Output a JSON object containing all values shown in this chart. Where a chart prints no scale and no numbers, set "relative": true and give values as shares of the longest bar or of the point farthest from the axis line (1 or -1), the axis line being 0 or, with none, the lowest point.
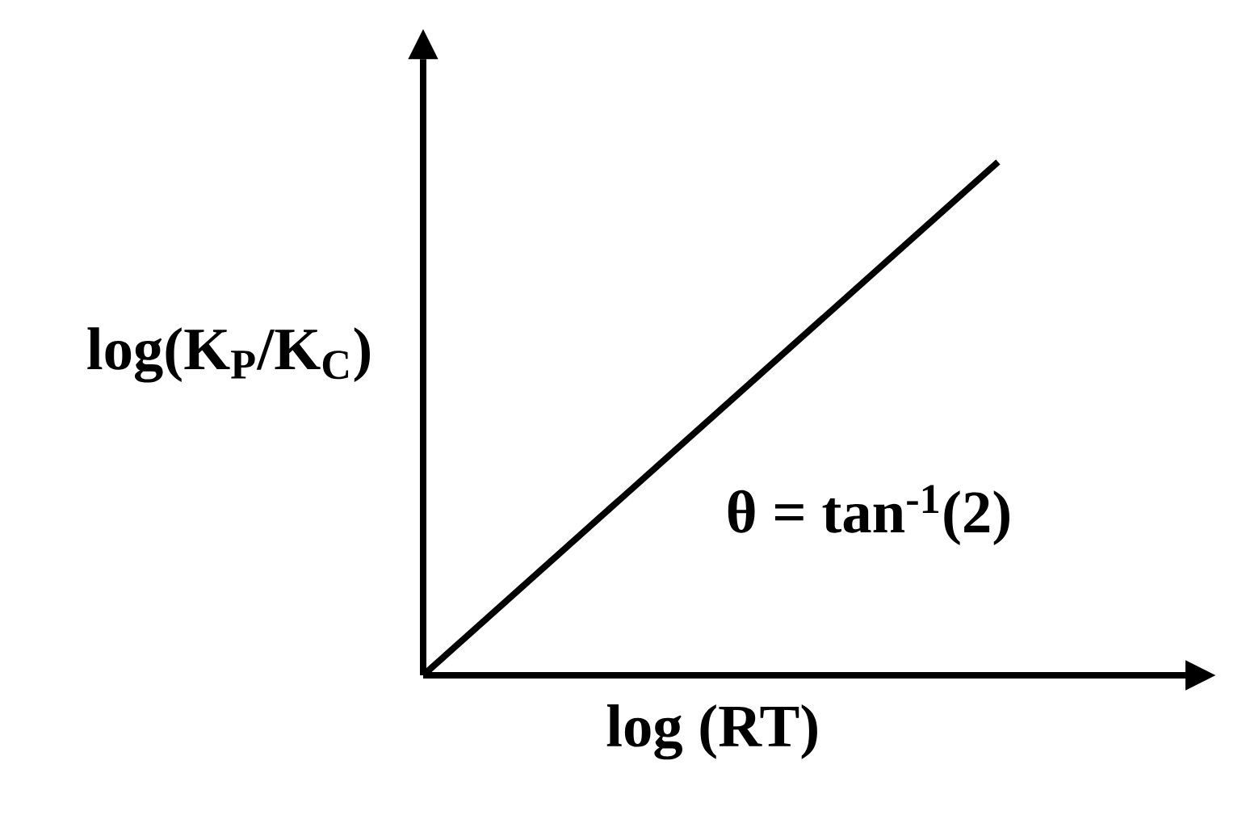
{
  "chart_data": {
    "type": "line",
    "relative": true,
    "xlabel": "log (RT)",
    "ylabel": "log(K$_{P}$/K$_{C}$)",
    "categories": [
      null,
      null
    ],
    "series": [
      {
        "color": "#000000",
        "values": [
          0,
          1
        ]
      }
    ],
    "annotations": [
      "θ = tan$^{-1}$(2)"
    ]
  }
}
